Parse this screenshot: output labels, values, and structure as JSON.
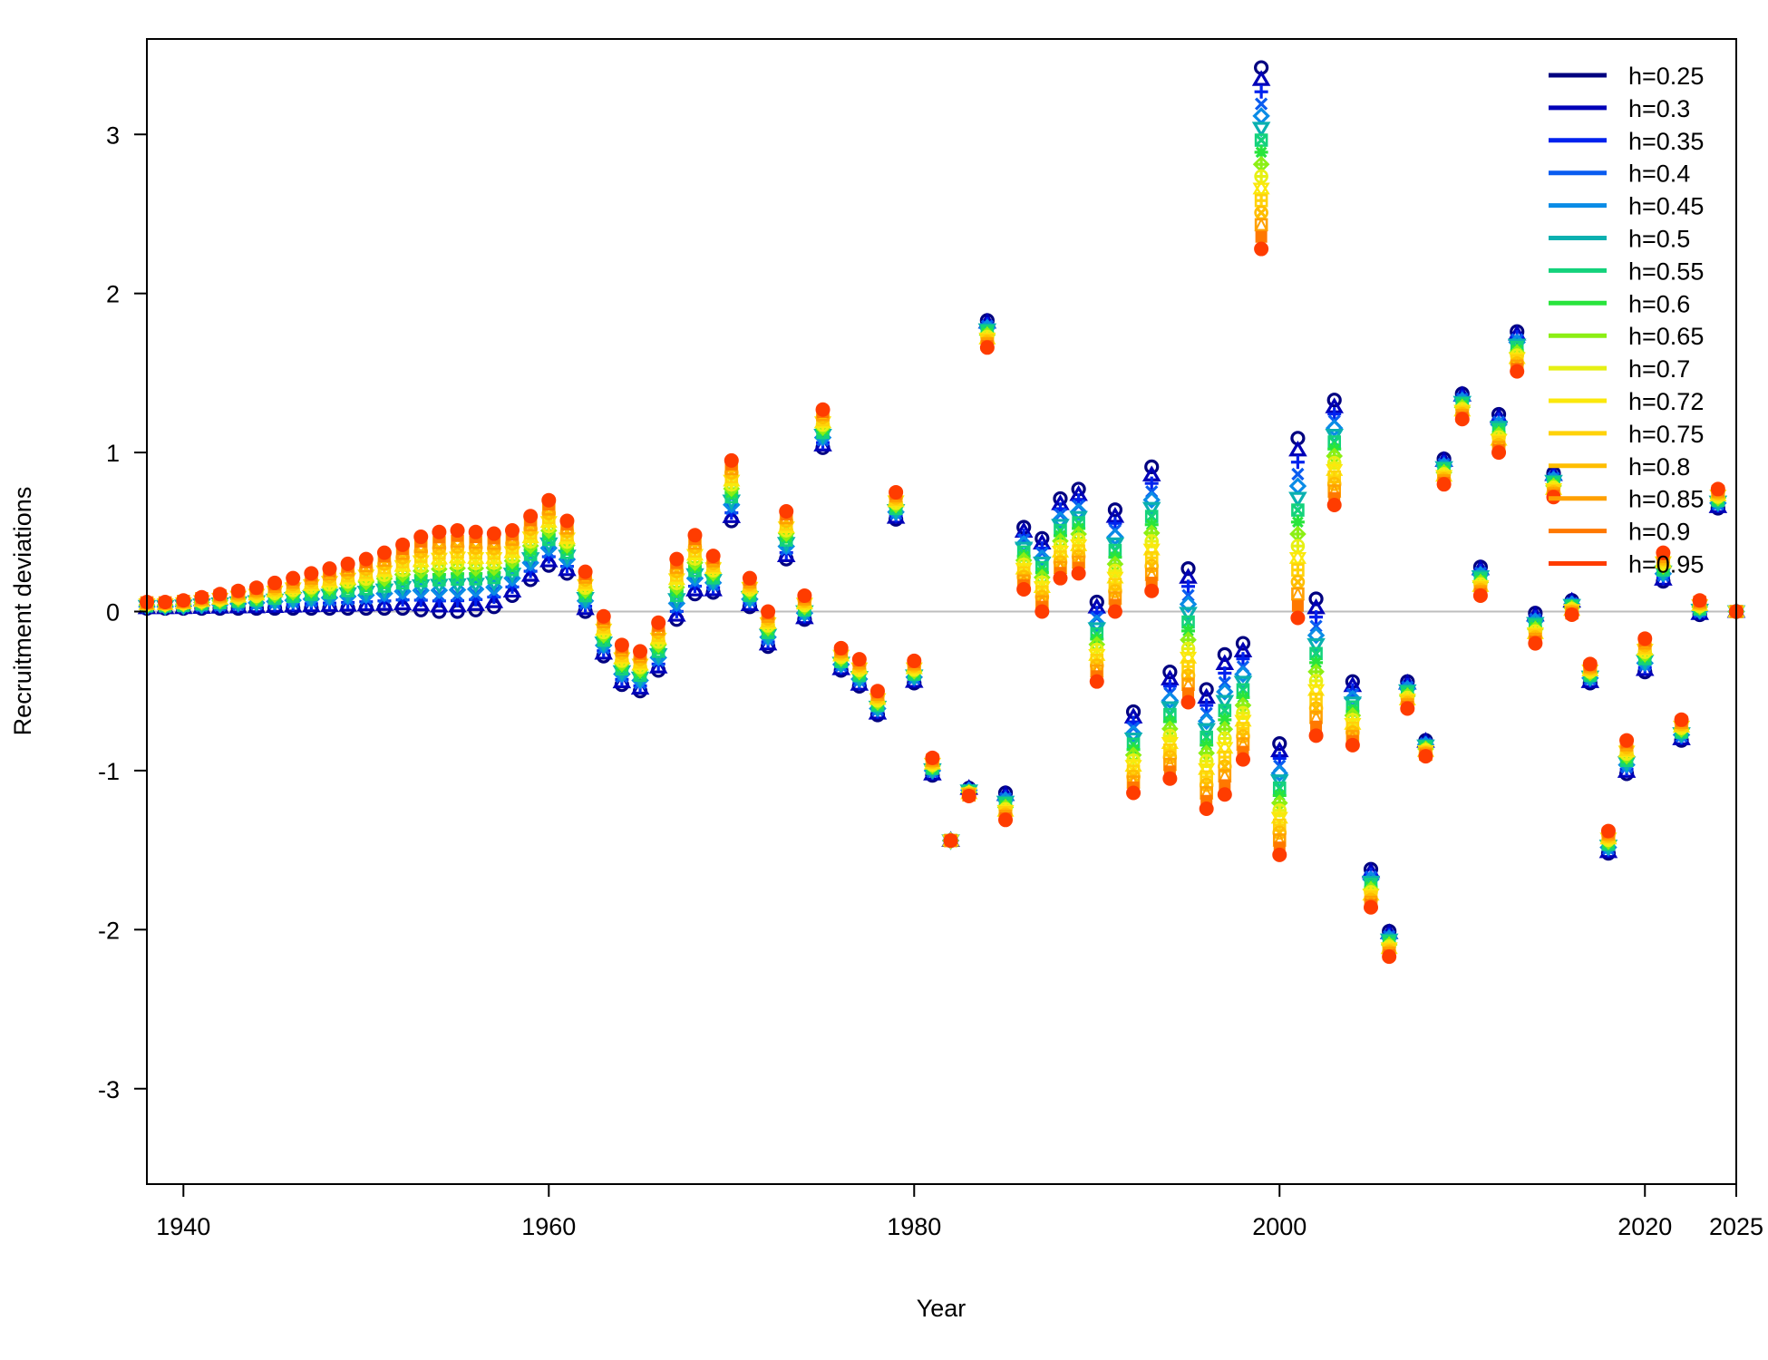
{
  "chart_data": {
    "type": "scatter",
    "xlabel": "Year",
    "ylabel": "Recruitment deviations",
    "xlim": [
      1938,
      2025
    ],
    "ylim": [
      -3.6,
      3.6
    ],
    "x_ticks": [
      1940,
      1960,
      1980,
      2000,
      2020,
      2025
    ],
    "y_ticks": [
      -3,
      -2,
      -1,
      0,
      1,
      2,
      3
    ],
    "reference_line_y": 0,
    "grid": false,
    "legend_position": "top-right",
    "series_low": {
      "name": "h=0.25",
      "x": [
        1938,
        1939,
        1940,
        1941,
        1942,
        1943,
        1944,
        1945,
        1946,
        1947,
        1948,
        1949,
        1950,
        1951,
        1952,
        1953,
        1954,
        1955,
        1956,
        1957,
        1958,
        1959,
        1960,
        1961,
        1962,
        1963,
        1964,
        1965,
        1966,
        1967,
        1968,
        1969,
        1970,
        1971,
        1972,
        1973,
        1974,
        1975,
        1976,
        1977,
        1978,
        1979,
        1980,
        1981,
        1982,
        1983,
        1984,
        1985,
        1986,
        1987,
        1988,
        1989,
        1990,
        1991,
        1992,
        1993,
        1994,
        1995,
        1996,
        1997,
        1998,
        1999,
        2000,
        2001,
        2002,
        2003,
        2004,
        2005,
        2006,
        2007,
        2008,
        2009,
        2010,
        2011,
        2012,
        2013,
        2014,
        2015,
        2016,
        2017,
        2018,
        2019,
        2020,
        2021,
        2022,
        2023,
        2024,
        2025
      ],
      "y": [
        0.02,
        0.02,
        0.02,
        0.02,
        0.02,
        0.02,
        0.02,
        0.02,
        0.02,
        0.02,
        0.02,
        0.02,
        0.02,
        0.02,
        0.02,
        0.01,
        0.0,
        0.0,
        0.01,
        0.03,
        0.1,
        0.2,
        0.29,
        0.24,
        0.0,
        -0.28,
        -0.46,
        -0.5,
        -0.37,
        -0.05,
        0.11,
        0.12,
        0.57,
        0.03,
        -0.22,
        0.33,
        -0.05,
        1.03,
        -0.37,
        -0.47,
        -0.65,
        0.58,
        -0.45,
        -1.03,
        -1.44,
        -1.11,
        1.83,
        -1.14,
        0.53,
        0.46,
        0.71,
        0.77,
        0.06,
        0.64,
        -0.63,
        0.91,
        -0.38,
        0.27,
        -0.49,
        -0.27,
        -0.2,
        3.42,
        -0.83,
        1.09,
        0.08,
        1.33,
        -0.44,
        -1.62,
        -2.01,
        -0.44,
        -0.81,
        0.96,
        1.37,
        0.28,
        1.24,
        1.76,
        -0.01,
        0.87,
        0.07,
        -0.45,
        -1.52,
        -1.02,
        -0.38,
        0.19,
        -0.81,
        -0.02,
        0.65,
        0.0
      ]
    },
    "series_high": {
      "name": "h=0.95",
      "x": [
        1938,
        1939,
        1940,
        1941,
        1942,
        1943,
        1944,
        1945,
        1946,
        1947,
        1948,
        1949,
        1950,
        1951,
        1952,
        1953,
        1954,
        1955,
        1956,
        1957,
        1958,
        1959,
        1960,
        1961,
        1962,
        1963,
        1964,
        1965,
        1966,
        1967,
        1968,
        1969,
        1970,
        1971,
        1972,
        1973,
        1974,
        1975,
        1976,
        1977,
        1978,
        1979,
        1980,
        1981,
        1982,
        1983,
        1984,
        1985,
        1986,
        1987,
        1988,
        1989,
        1990,
        1991,
        1992,
        1993,
        1994,
        1995,
        1996,
        1997,
        1998,
        1999,
        2000,
        2001,
        2002,
        2003,
        2004,
        2005,
        2006,
        2007,
        2008,
        2009,
        2010,
        2011,
        2012,
        2013,
        2014,
        2015,
        2016,
        2017,
        2018,
        2019,
        2020,
        2021,
        2022,
        2023,
        2024,
        2025
      ],
      "y": [
        0.06,
        0.06,
        0.07,
        0.09,
        0.11,
        0.13,
        0.15,
        0.18,
        0.21,
        0.24,
        0.27,
        0.3,
        0.33,
        0.37,
        0.42,
        0.47,
        0.5,
        0.51,
        0.5,
        0.49,
        0.51,
        0.6,
        0.7,
        0.57,
        0.25,
        -0.03,
        -0.21,
        -0.25,
        -0.07,
        0.33,
        0.48,
        0.35,
        0.95,
        0.21,
        -0.0,
        0.63,
        0.1,
        1.27,
        -0.23,
        -0.3,
        -0.5,
        0.75,
        -0.31,
        -0.92,
        -1.44,
        -1.16,
        1.66,
        -1.31,
        0.14,
        0.0,
        0.21,
        0.24,
        -0.44,
        0.0,
        -1.14,
        0.13,
        -1.05,
        -0.57,
        -1.24,
        -1.15,
        -0.93,
        2.28,
        -1.53,
        -0.04,
        -0.78,
        0.67,
        -0.84,
        -1.86,
        -2.17,
        -0.61,
        -0.91,
        0.8,
        1.21,
        0.1,
        1.0,
        1.51,
        -0.2,
        0.72,
        -0.02,
        -0.33,
        -1.38,
        -0.81,
        -0.17,
        0.37,
        -0.68,
        0.07,
        0.77,
        0.0
      ]
    },
    "series": [
      {
        "name": "h=0.25",
        "color": "#000080",
        "marker": "circle"
      },
      {
        "name": "h=0.3",
        "color": "#0000b8",
        "marker": "triangle"
      },
      {
        "name": "h=0.35",
        "color": "#0022ee",
        "marker": "plus"
      },
      {
        "name": "h=0.4",
        "color": "#0a5cf0",
        "marker": "cross"
      },
      {
        "name": "h=0.45",
        "color": "#0a8ce6",
        "marker": "diamond"
      },
      {
        "name": "h=0.5",
        "color": "#0ab0b0",
        "marker": "triangle-down"
      },
      {
        "name": "h=0.55",
        "color": "#14d27c",
        "marker": "square-cross"
      },
      {
        "name": "h=0.6",
        "color": "#28e43c",
        "marker": "star"
      },
      {
        "name": "h=0.65",
        "color": "#8cef14",
        "marker": "diamond-plus"
      },
      {
        "name": "h=0.7",
        "color": "#e6f014",
        "marker": "circle-plus"
      },
      {
        "name": "h=0.72",
        "color": "#fbe80c",
        "marker": "triangle-pair"
      },
      {
        "name": "h=0.75",
        "color": "#ffd20a",
        "marker": "square-plus"
      },
      {
        "name": "h=0.8",
        "color": "#ffbe00",
        "marker": "circle-cross"
      },
      {
        "name": "h=0.85",
        "color": "#ffa000",
        "marker": "square-triangle"
      },
      {
        "name": "h=0.9",
        "color": "#ff7800",
        "marker": "square"
      },
      {
        "name": "h=0.95",
        "color": "#ff3c00",
        "marker": "filled-circle"
      }
    ]
  }
}
